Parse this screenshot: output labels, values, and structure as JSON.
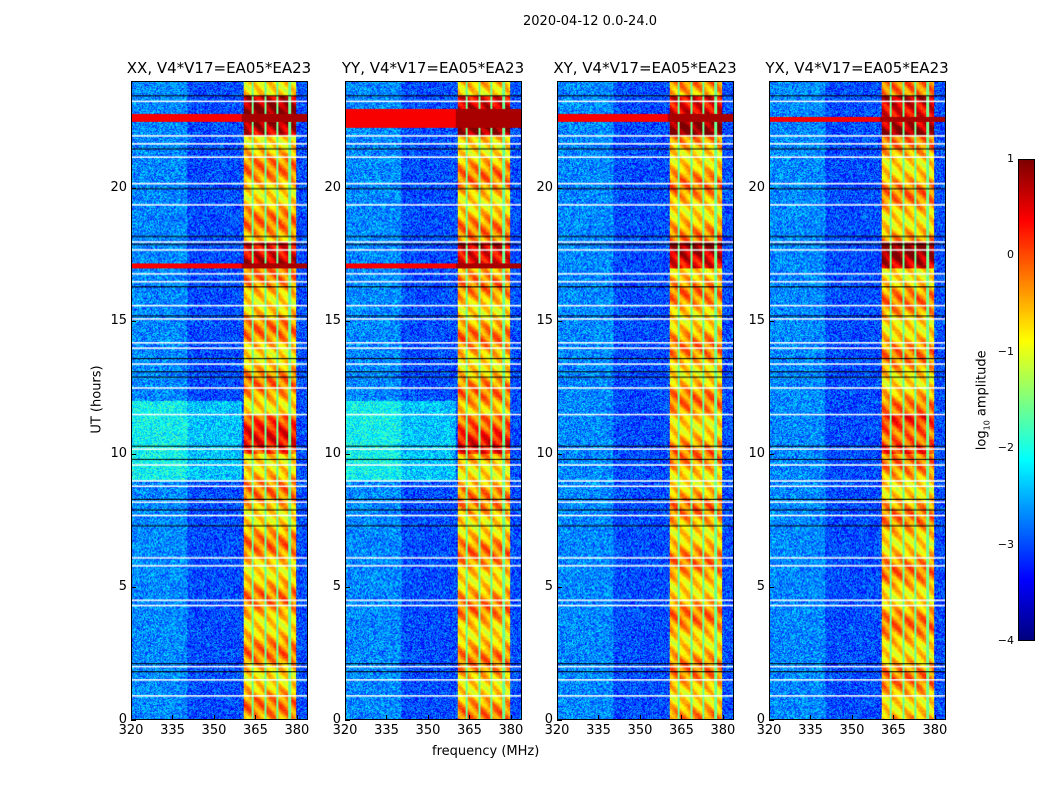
{
  "figure_title": "2020-04-12 0.0-24.0",
  "chart_data": {
    "type": "heatmap",
    "title": "2020-04-12 0.0-24.0",
    "xlabel": "frequency (MHz)",
    "ylabel": "UT (hours)",
    "xlim": [
      320,
      384
    ],
    "ylim": [
      0,
      24
    ],
    "xticks": [
      "320",
      "335",
      "350",
      "365",
      "380"
    ],
    "yticks": [
      "0",
      "5",
      "10",
      "15",
      "20"
    ],
    "panels": [
      {
        "title": "XX, V4*V17=EA05*EA23",
        "rfi_hour_bands": [
          [
            22.5,
            22.8
          ],
          [
            17.0,
            17.2
          ]
        ]
      },
      {
        "title": "YY, V4*V17=EA05*EA23",
        "rfi_hour_bands": [
          [
            22.3,
            23.0
          ],
          [
            17.0,
            17.2
          ]
        ]
      },
      {
        "title": "XY, V4*V17=EA05*EA23",
        "rfi_hour_bands": [
          [
            22.5,
            22.8
          ]
        ]
      },
      {
        "title": "YX, V4*V17=EA05*EA23",
        "rfi_hour_bands": [
          [
            22.5,
            22.7
          ]
        ]
      }
    ],
    "strong_band_mhz": [
      360.5,
      380
    ],
    "band_gaps_mhz": [
      364,
      368.5,
      373,
      377.5
    ],
    "background_log_amplitude": -3,
    "band_log_amplitude": -0.5,
    "flagged_hours_white": [
      0.9,
      1.5,
      2.0,
      4.3,
      4.5,
      5.8,
      6.1,
      7.7,
      8.2,
      8.8,
      9.0,
      9.6,
      10.2,
      11.5,
      12.5,
      13.4,
      14.0,
      14.2,
      15.1,
      15.6,
      16.5,
      16.8,
      17.7,
      18.0,
      19.4,
      20.2,
      21.2,
      21.7,
      22.0,
      23.3
    ],
    "flagged_hours_black": [
      1.8,
      2.1,
      7.3,
      7.9,
      8.3,
      9.8,
      10.3,
      12.9,
      13.1,
      13.6,
      15.2,
      16.3,
      17.9,
      18.2,
      20.0,
      21.5,
      23.5
    ],
    "colorbar": {
      "label_prefix": "log",
      "label_sub": "10",
      "label_suffix": " amplitude",
      "range": [
        -4,
        1
      ],
      "ticks": [
        "1",
        "0",
        "−1",
        "−2",
        "−3",
        "−4"
      ],
      "colormap": "jet"
    }
  }
}
